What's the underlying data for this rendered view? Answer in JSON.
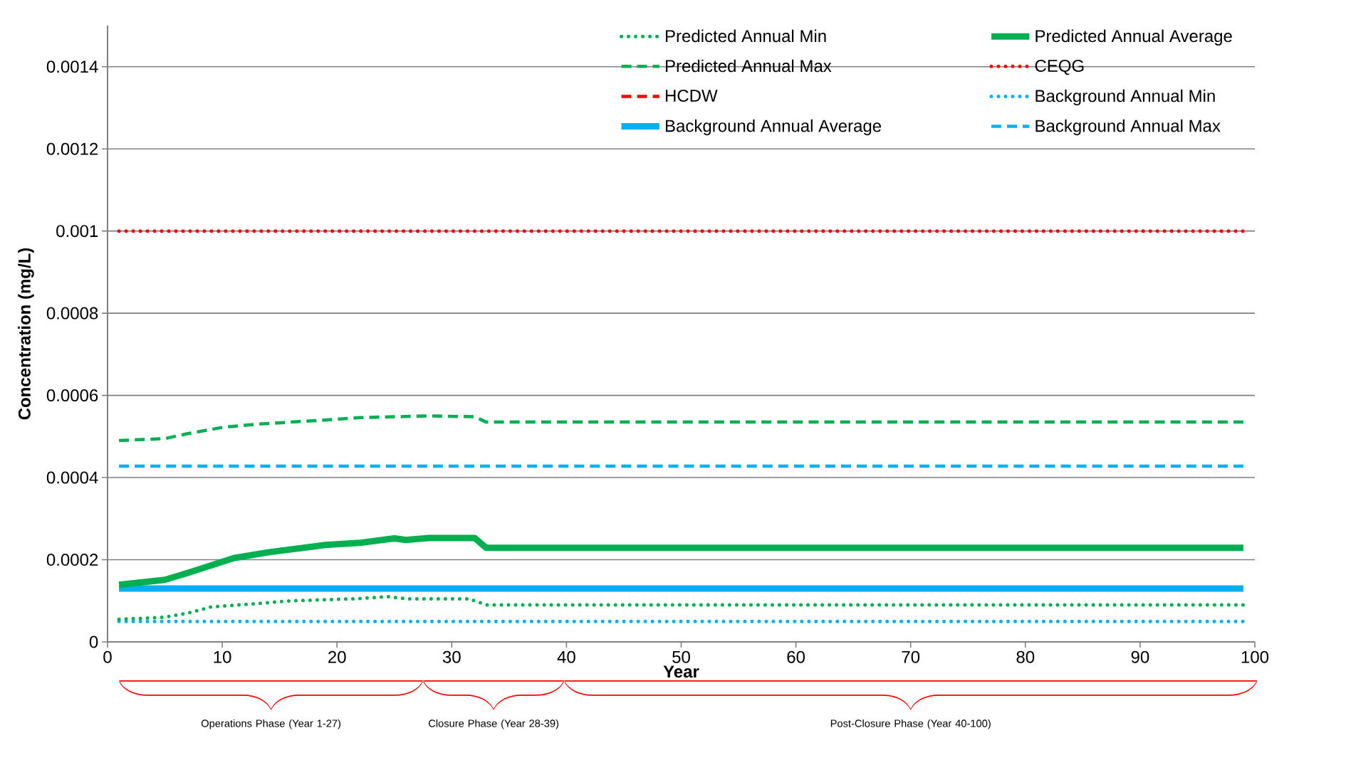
{
  "chart_data": {
    "type": "line",
    "xlabel": "Year",
    "ylabel": "Concentration (mg/L)",
    "xlim": [
      0,
      100
    ],
    "xticks": [
      0,
      10,
      20,
      30,
      40,
      50,
      60,
      70,
      80,
      90,
      100
    ],
    "ylim": [
      0,
      0.0015
    ],
    "yticks": [
      0,
      0.0002,
      0.0004,
      0.0006,
      0.0008,
      0.001,
      0.0012,
      0.0014
    ],
    "grid": "y",
    "legend": "top right",
    "series": [
      {
        "name": "Predicted Annual Min",
        "color": "#00b050",
        "line_style": "dotted",
        "x": [
          1,
          5,
          7,
          9,
          11.5,
          16,
          21.5,
          24.5,
          26,
          31.5,
          33,
          99
        ],
        "values": [
          5.5e-05,
          6e-05,
          7e-05,
          8.5e-05,
          9e-05,
          0.0001,
          0.000105,
          0.00011,
          0.000105,
          0.000105,
          9e-05,
          9e-05
        ]
      },
      {
        "name": "Predicted Annual Average",
        "color": "#00b050",
        "line_style": "solid",
        "x": [
          1,
          5,
          7,
          11,
          14,
          19,
          22,
          25,
          26,
          28,
          32,
          33,
          99
        ],
        "values": [
          0.000139,
          0.000151,
          0.000168,
          0.000204,
          0.000218,
          0.000236,
          0.000241,
          0.000252,
          0.000248,
          0.000253,
          0.000253,
          0.000229,
          0.000229
        ]
      },
      {
        "name": "Predicted Annual Max",
        "color": "#00b050",
        "line_style": "dashed",
        "x": [
          1,
          5,
          7,
          10,
          13,
          16,
          19,
          22,
          25,
          28,
          32,
          33,
          99
        ],
        "values": [
          0.00049,
          0.000495,
          0.000507,
          0.000522,
          0.00053,
          0.000535,
          0.00054,
          0.000546,
          0.000548,
          0.00055,
          0.000548,
          0.000535,
          0.000535
        ]
      },
      {
        "name": "CEQG",
        "color": "#ff0000",
        "line_style": "dotted",
        "x": [
          1,
          99
        ],
        "values": [
          0.001,
          0.001
        ]
      },
      {
        "name": "HCDW",
        "color": "#ff0000",
        "line_style": "dashed",
        "values": [
          null
        ]
      },
      {
        "name": "Background Annual Min",
        "color": "#00b0f0",
        "line_style": "dotted",
        "x": [
          1,
          99
        ],
        "values": [
          5e-05,
          5e-05
        ]
      },
      {
        "name": "Background Annual Average",
        "color": "#00b0f0",
        "line_style": "solid",
        "x": [
          1,
          99
        ],
        "values": [
          0.00013,
          0.00013
        ]
      },
      {
        "name": "Background Annual Max",
        "color": "#00b0f0",
        "line_style": "dashed",
        "x": [
          1,
          99
        ],
        "values": [
          0.000428,
          0.000428
        ]
      }
    ],
    "annotations": [
      "Operations Phase (Year 1-27)",
      "Closure Phase (Year 28-39)",
      "Post-Closure Phase (Year 40-100)"
    ]
  }
}
